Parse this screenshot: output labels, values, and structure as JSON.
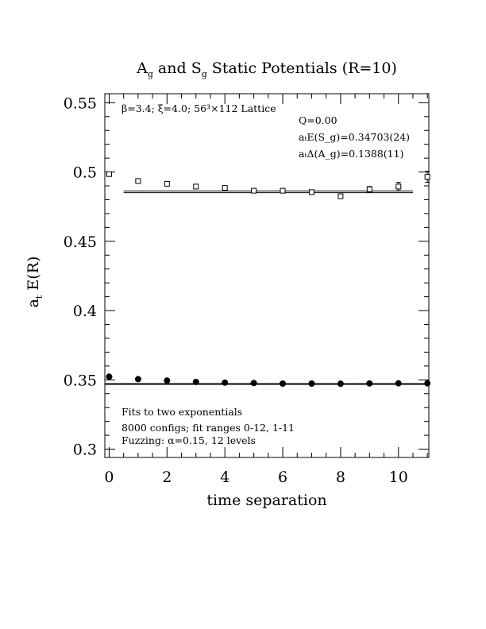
{
  "chart_data": {
    "type": "scatter",
    "title_parts": [
      "A",
      "g",
      " and S",
      "g",
      " Static Potentials (R=10)"
    ],
    "xlabel": "time separation",
    "ylabel_parts": [
      "a",
      "t",
      " E(R)"
    ],
    "xlim": [
      -0.15,
      11.05
    ],
    "ylim": [
      0.294,
      0.5565
    ],
    "x_ticks": [
      0,
      2,
      4,
      6,
      8,
      10
    ],
    "y_ticks": [
      0.3,
      0.35,
      0.4,
      0.45,
      0.5,
      0.55
    ],
    "y_tick_labels": [
      "0.3",
      "0.35",
      "0.4",
      "0.45",
      "0.5",
      "0.55"
    ],
    "series": [
      {
        "marker": "filled-circle",
        "x": [
          0,
          1,
          2,
          3,
          4,
          5,
          6,
          7,
          8,
          9,
          10,
          11
        ],
        "y": [
          0.3523,
          0.3505,
          0.3495,
          0.3485,
          0.348,
          0.3477,
          0.3473,
          0.3473,
          0.3472,
          0.3474,
          0.3475,
          0.3475
        ],
        "err": [
          0.0004,
          0.0004,
          0.0004,
          0.0004,
          0.0004,
          0.0004,
          0.0004,
          0.0004,
          0.0004,
          0.0004,
          0.0004,
          0.0004
        ]
      },
      {
        "marker": "open-square",
        "x": [
          0,
          1,
          2,
          3,
          4,
          5,
          6,
          7,
          8,
          9,
          10,
          11
        ],
        "y": [
          0.4985,
          0.4935,
          0.4915,
          0.4895,
          0.4885,
          0.4865,
          0.4865,
          0.4855,
          0.4825,
          0.4875,
          0.4895,
          0.4965
        ],
        "err": [
          0.0006,
          0.0007,
          0.0008,
          0.0009,
          0.001,
          0.0011,
          0.0012,
          0.0014,
          0.0016,
          0.002,
          0.003,
          0.004
        ]
      }
    ],
    "fits": [
      {
        "band": [
          0.3467,
          0.3473
        ],
        "xrange": [
          -0.15,
          11.05
        ]
      },
      {
        "band": [
          0.4851,
          0.4863
        ],
        "xrange": [
          0.5,
          10.5
        ]
      }
    ],
    "annotations": {
      "lattice": "β=3.4; ξ=4.0; 56³×112 Lattice",
      "q": "Q=0.00",
      "energy": "aₜE(S_g)=0.34703(24)",
      "gap": "aₜΔ(A_g)=0.1388(11)",
      "fits": "Fits to two exponentials",
      "configs": "8000 configs; fit ranges 0-12, 1-11",
      "fuzzing": "Fuzzing: α=0.15, 12 levels"
    },
    "grid": false
  }
}
